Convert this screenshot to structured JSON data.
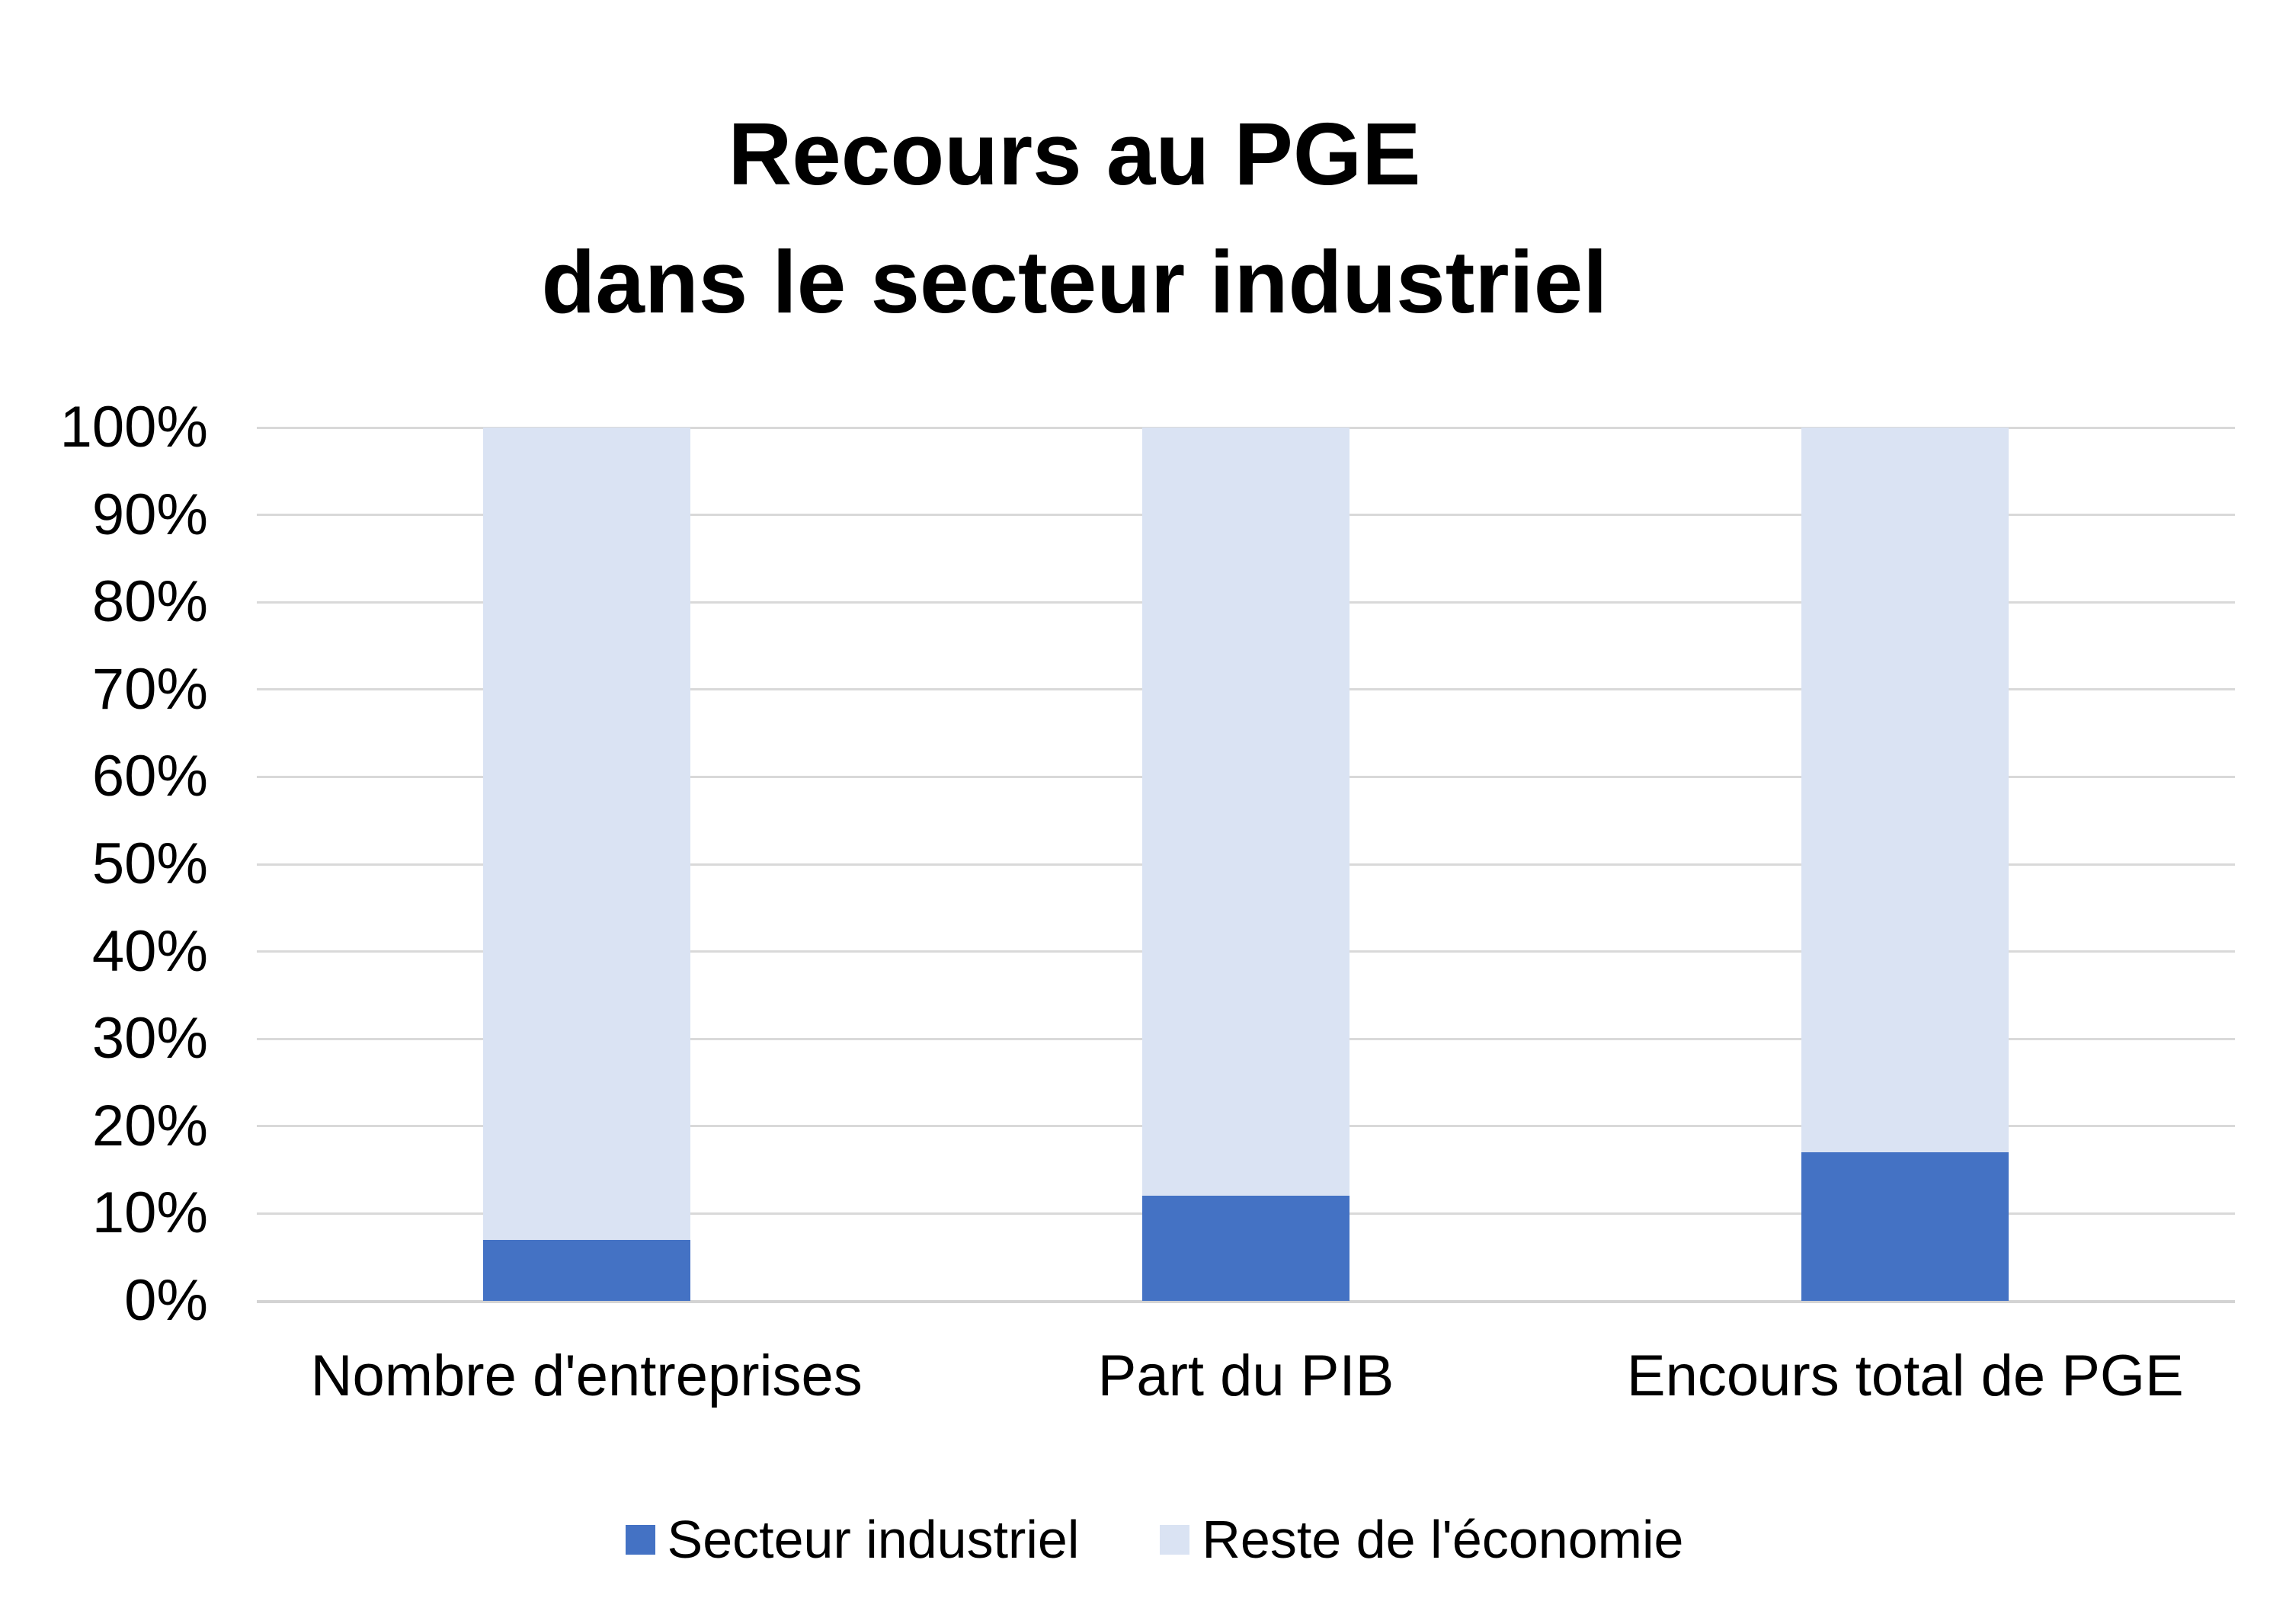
{
  "title": {
    "line1": "Recours au PGE",
    "line2": "dans le secteur industriel"
  },
  "chart_data": {
    "type": "bar",
    "subtype": "stacked-100-percent-column",
    "title": "Recours au PGE dans le secteur industriel",
    "categories": [
      "Nombre d'entreprises",
      "Part du PIB",
      "Encours total de PGE"
    ],
    "series": [
      {
        "name": "Secteur industriel",
        "color": "#4472C4",
        "values": [
          7,
          12,
          17
        ]
      },
      {
        "name": "Reste de l'économie",
        "color": "#DAE3F3",
        "values": [
          93,
          88,
          83
        ]
      }
    ],
    "xlabel": "",
    "ylabel": "",
    "ylim": [
      0,
      100
    ],
    "y_tick_step": 10,
    "y_tick_labels": [
      "0%",
      "10%",
      "20%",
      "30%",
      "40%",
      "50%",
      "60%",
      "70%",
      "80%",
      "90%",
      "100%"
    ],
    "grid": true,
    "gridline_color": "#D9D9D9",
    "legend_position": "bottom",
    "text_color": "#000000",
    "background_color": "#FFFFFF"
  }
}
